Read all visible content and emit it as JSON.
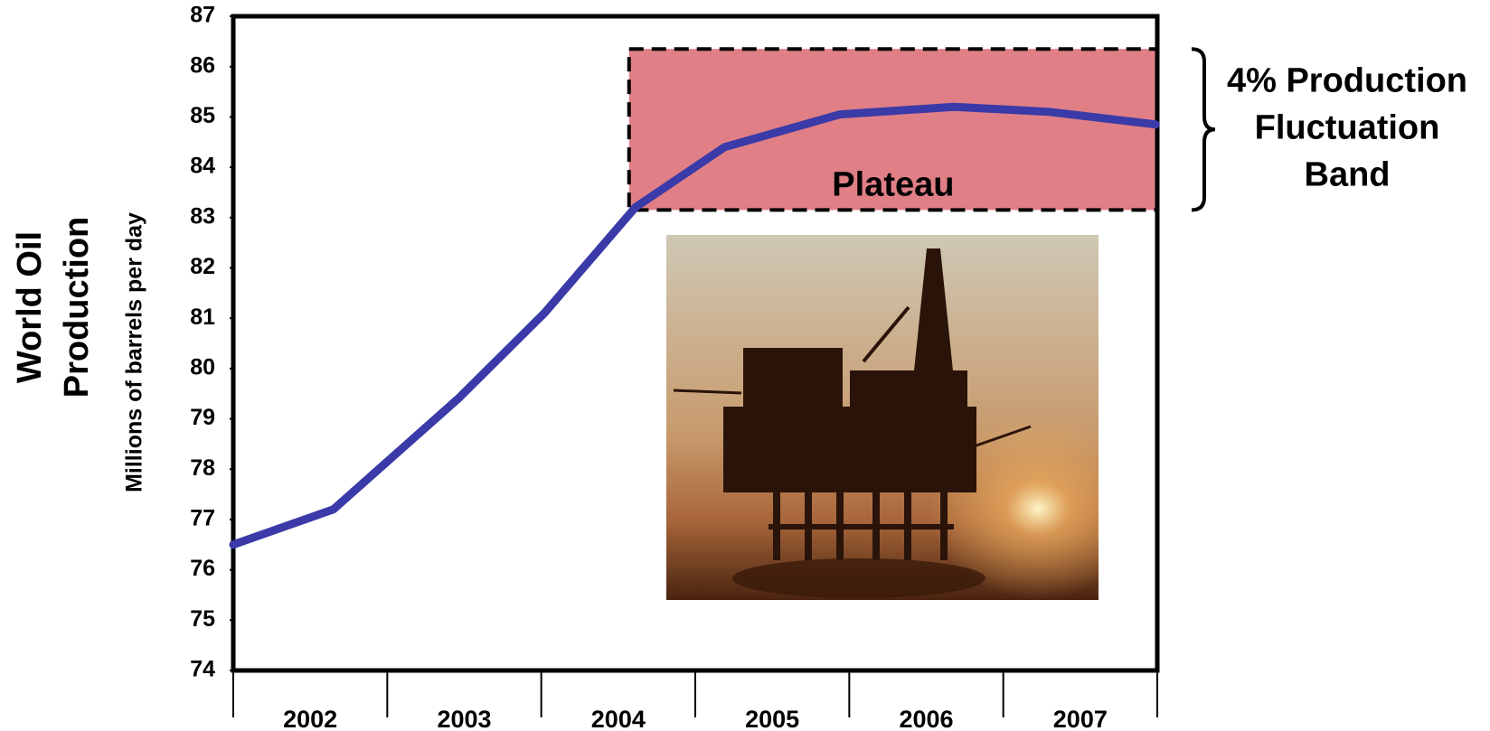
{
  "chart_data": {
    "type": "line",
    "y_title": [
      "World Oil",
      "Production"
    ],
    "y_subtitle": "Millions of barrels per day",
    "xlim": [
      2001.5,
      2007.5
    ],
    "xticks": [
      2002,
      2003,
      2004,
      2005,
      2006,
      2007
    ],
    "ylim": [
      74,
      87
    ],
    "yticks": [
      74,
      75,
      76,
      77,
      78,
      79,
      80,
      81,
      82,
      83,
      84,
      85,
      86,
      87
    ],
    "series": [
      {
        "color": "#3a3aa8",
        "x": [
          2001.5,
          2002.15,
          2002.96,
          2003.52,
          2004.11,
          2004.69,
          2005.44,
          2006.18,
          2006.8,
          2007.49
        ],
        "values": [
          76.5,
          77.2,
          79.4,
          81.1,
          83.2,
          84.4,
          85.05,
          85.2,
          85.1,
          84.85
        ]
      }
    ],
    "band": {
      "x": [
        2004.07,
        2007.5
      ],
      "y": [
        83.15,
        86.35
      ],
      "color": "#e07f86",
      "label": "Plateau"
    },
    "annotation": [
      "4% Production",
      "Fluctuation",
      "Band"
    ]
  }
}
